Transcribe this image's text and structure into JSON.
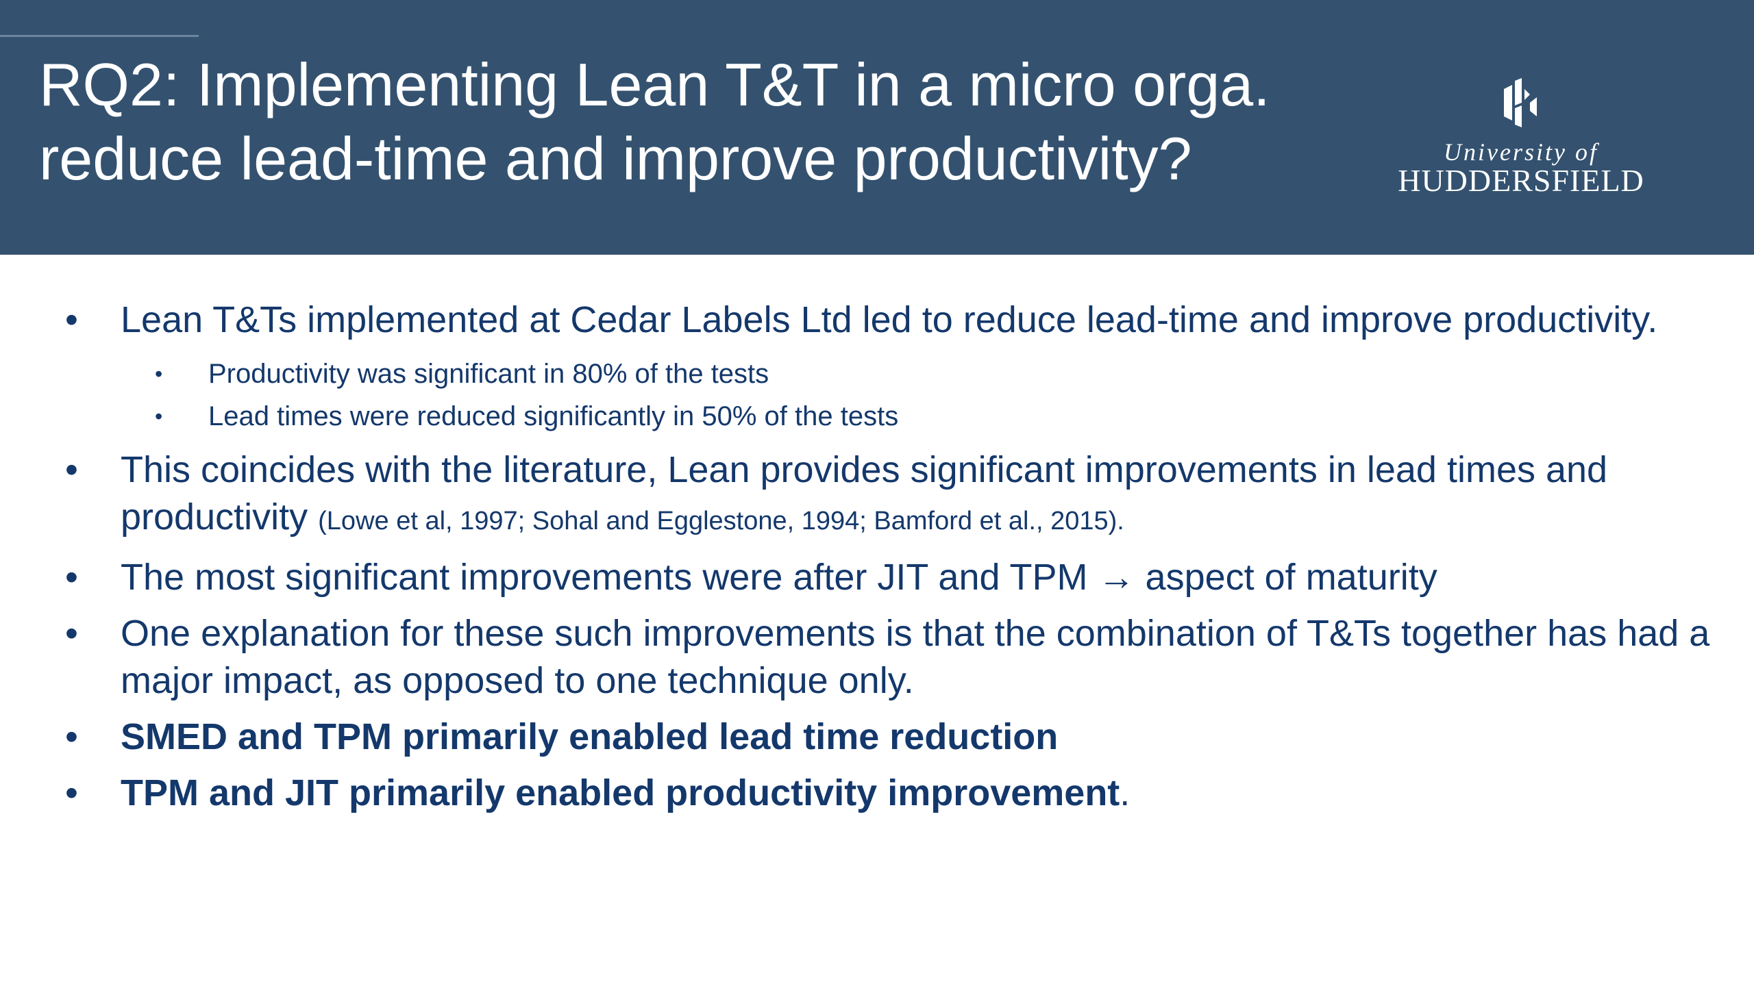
{
  "header": {
    "title_lines": [
      "RQ2: Implementing Lean T&T in a micro orga.",
      "reduce lead-time and improve productivity?"
    ],
    "logo": {
      "line1": "University of",
      "line2": "HUDDERSFIELD"
    }
  },
  "bullets": [
    {
      "text": "Lean T&Ts implemented at Cedar Labels Ltd led to reduce lead-time and improve productivity.",
      "sub_bullets": [
        "Productivity was significant in 80% of the tests",
        "Lead times were reduced significantly in 50% of the tests"
      ]
    },
    {
      "text": "This coincides with the literature, Lean provides significant improvements in lead times and productivity",
      "citation": "(Lowe et al, 1997; Sohal and Egglestone, 1994; Bamford et al., 2015)."
    },
    {
      "text": "The most significant improvements were after JIT and TPM → aspect of maturity"
    },
    {
      "text": "One explanation for these such improvements is that the combination of T&Ts together has had a major impact, as opposed to one technique only."
    },
    {
      "text": "SMED and TPM primarily enabled lead time reduction",
      "bold": true
    },
    {
      "text": "TPM and JIT primarily enabled productivity improvement",
      "bold": true,
      "trailing": "."
    }
  ]
}
